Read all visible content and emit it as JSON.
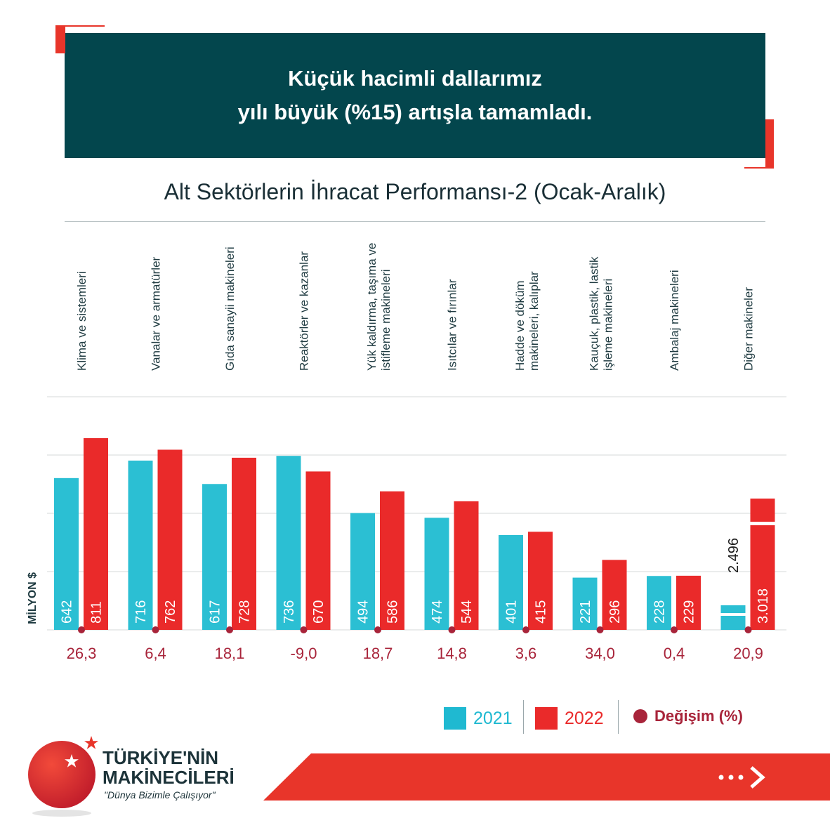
{
  "headline": {
    "line1": "Küçük hacimli dallarımız",
    "line2": "yılı büyük (%15) artışla tamamladı."
  },
  "chart_data": {
    "type": "bar",
    "title": "Alt Sektörlerin İhracat Performansı-2 (Ocak-Aralık)",
    "ylabel": "MİLYON $",
    "categories": [
      [
        "Klima ve sistemleri"
      ],
      [
        "Vanalar  ve armatürler"
      ],
      [
        "Gıda sanayii makineleri"
      ],
      [
        "Reaktörler ve kazanlar"
      ],
      [
        "Yük kaldırma, taşıma ve",
        "istifleme makineleri"
      ],
      [
        "Isıtcılar ve fırınlar"
      ],
      [
        "Hadde ve döküm",
        "makineleri, kalıplar"
      ],
      [
        "Kauçuk, plastik, lastik",
        "işleme makineleri"
      ],
      [
        "Ambalaj makineleri"
      ],
      [
        "Diğer makineler"
      ]
    ],
    "series": [
      {
        "name": "2021",
        "values": [
          642,
          716,
          617,
          736,
          494,
          474,
          401,
          221,
          228,
          2496
        ],
        "labels": [
          "642",
          "716",
          "617",
          "736",
          "494",
          "474",
          "401",
          "221",
          "228",
          "2.496"
        ]
      },
      {
        "name": "2022",
        "values": [
          811,
          762,
          728,
          670,
          586,
          544,
          415,
          296,
          229,
          3018
        ],
        "labels": [
          "811",
          "762",
          "728",
          "670",
          "586",
          "544",
          "415",
          "296",
          "229",
          "3.018"
        ]
      }
    ],
    "change": {
      "name": "Değişim (%)",
      "values": [
        26.3,
        6.4,
        18.1,
        -9.0,
        18.7,
        14.8,
        3.6,
        34.0,
        0.4,
        20.9
      ],
      "labels": [
        "26,3",
        "6,4",
        "18,1",
        "-9,0",
        "18,7",
        "14,8",
        "3,6",
        "34,0",
        "0,4",
        "20,9"
      ]
    },
    "broken_axis_category": "Diğer makineler",
    "grid": true,
    "legend_position": "bottom-right",
    "colors": {
      "2021": "#2bbfd3",
      "2022": "#ea2a2a",
      "change": "#a8243a"
    }
  },
  "legend": {
    "items": [
      {
        "label": "2021",
        "color": "#1fb9d1"
      },
      {
        "label": "2022",
        "color": "#ea2a2a"
      },
      {
        "label": "Değişim (%)",
        "color": "#a8243a"
      }
    ]
  },
  "logo": {
    "line1": "TÜRKİYE'NİN",
    "line2": "MAKİNECİLERİ",
    "slogan": "\"Dünya Bizimle Çalışıyor\""
  }
}
